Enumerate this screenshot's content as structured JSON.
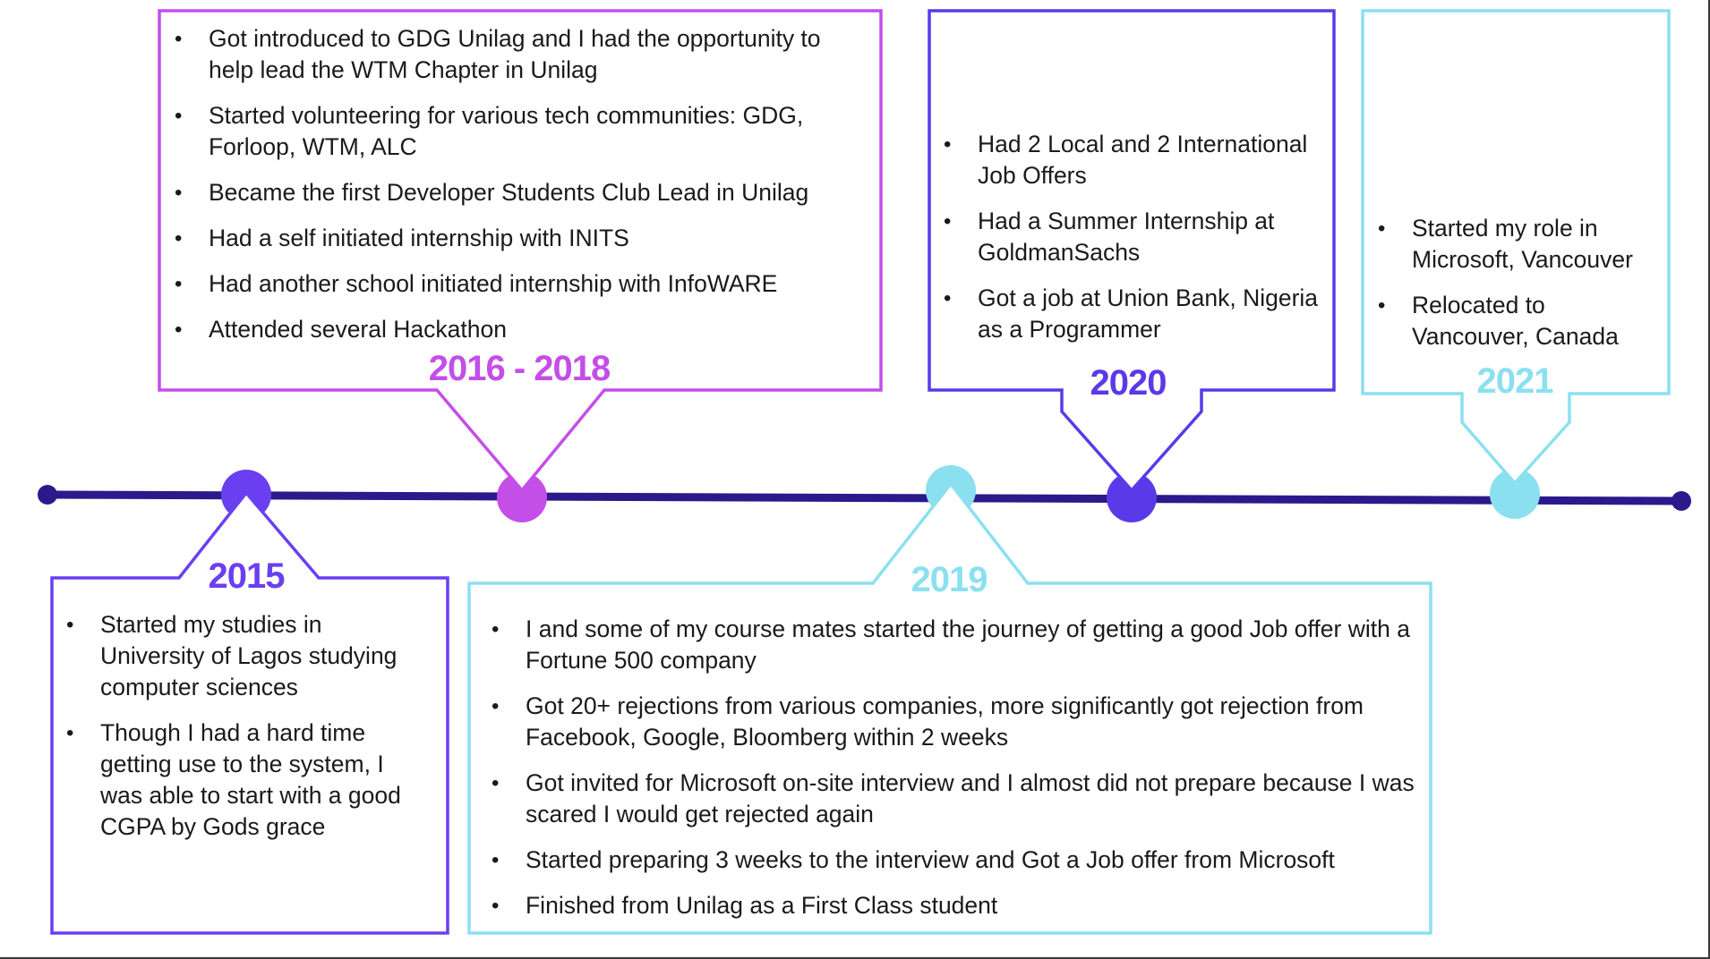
{
  "colors": {
    "timeline": "#2a1a8c",
    "y2015": "#6a3ff0",
    "y2016_2018": "#c44ee8",
    "y2019": "#8be0f0",
    "y2020": "#5a3ae8",
    "y2021": "#8be0f0"
  },
  "milestones": {
    "y2015": {
      "year": "2015",
      "items": [
        "Started my studies in University of Lagos studying computer sciences",
        "Though I had a hard time getting use to the system, I was able to start with a good CGPA by Gods grace"
      ]
    },
    "y2016_2018": {
      "year": "2016 - 2018",
      "items": [
        "Got introduced to GDG Unilag and I had the opportunity to help lead the WTM Chapter in Unilag",
        "Started volunteering for various tech communities: GDG, Forloop, WTM, ALC",
        "Became the first Developer Students Club Lead in Unilag",
        "Had a self initiated internship with INITS",
        "Had another school initiated internship with InfoWARE",
        "Attended several Hackathon"
      ]
    },
    "y2019": {
      "year": "2019",
      "items": [
        "I and some of my course mates started the journey of getting a good Job offer with a Fortune 500 company",
        "Got 20+ rejections from various companies, more significantly got rejection from Facebook, Google, Bloomberg within 2 weeks",
        "Got invited for Microsoft on-site interview and I almost did not prepare because I was scared I would get rejected again",
        "Started preparing 3 weeks to the interview and Got a Job offer from Microsoft",
        "Finished from Unilag as a First Class student"
      ]
    },
    "y2020": {
      "year": "2020",
      "items": [
        "Had 2 Local and 2 International Job Offers",
        "Had a Summer Internship at GoldmanSachs",
        "Got a job at Union Bank, Nigeria as a Programmer"
      ]
    },
    "y2021": {
      "year": "2021",
      "items": [
        "Started my role in Microsoft, Vancouver",
        "Relocated to Vancouver, Canada"
      ]
    }
  }
}
